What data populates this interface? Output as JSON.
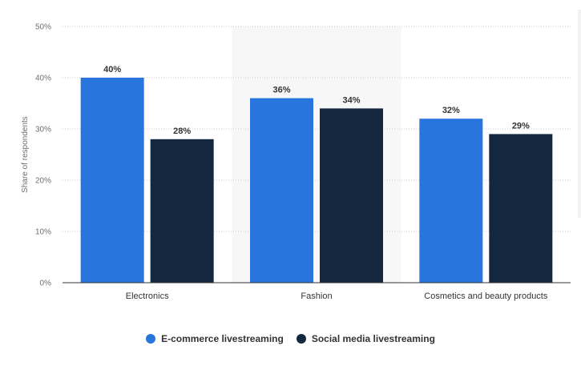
{
  "chart_data": {
    "type": "bar",
    "title": "",
    "xlabel": "",
    "ylabel": "Share of respondents",
    "ylim": [
      0,
      50
    ],
    "yticks": [
      0,
      10,
      20,
      30,
      40,
      50
    ],
    "ytick_labels": [
      "0%",
      "10%",
      "20%",
      "30%",
      "40%",
      "50%"
    ],
    "grid": true,
    "legend_position": "bottom",
    "categories": [
      "Electronics",
      "Fashion",
      "Cosmetics and beauty products"
    ],
    "highlighted_category": "Fashion",
    "series": [
      {
        "name": "E-commerce livestreaming",
        "values": [
          40,
          36,
          32
        ],
        "labels": [
          "40%",
          "36%",
          "32%"
        ],
        "color": "#2876dd"
      },
      {
        "name": "Social media livestreaming",
        "values": [
          28,
          34,
          29
        ],
        "labels": [
          "28%",
          "34%",
          "29%"
        ],
        "color": "#13283f"
      }
    ]
  },
  "colors": {
    "highlight_band": "#f7f7f7",
    "gridline": "#cccccc",
    "axis": "#333333"
  }
}
